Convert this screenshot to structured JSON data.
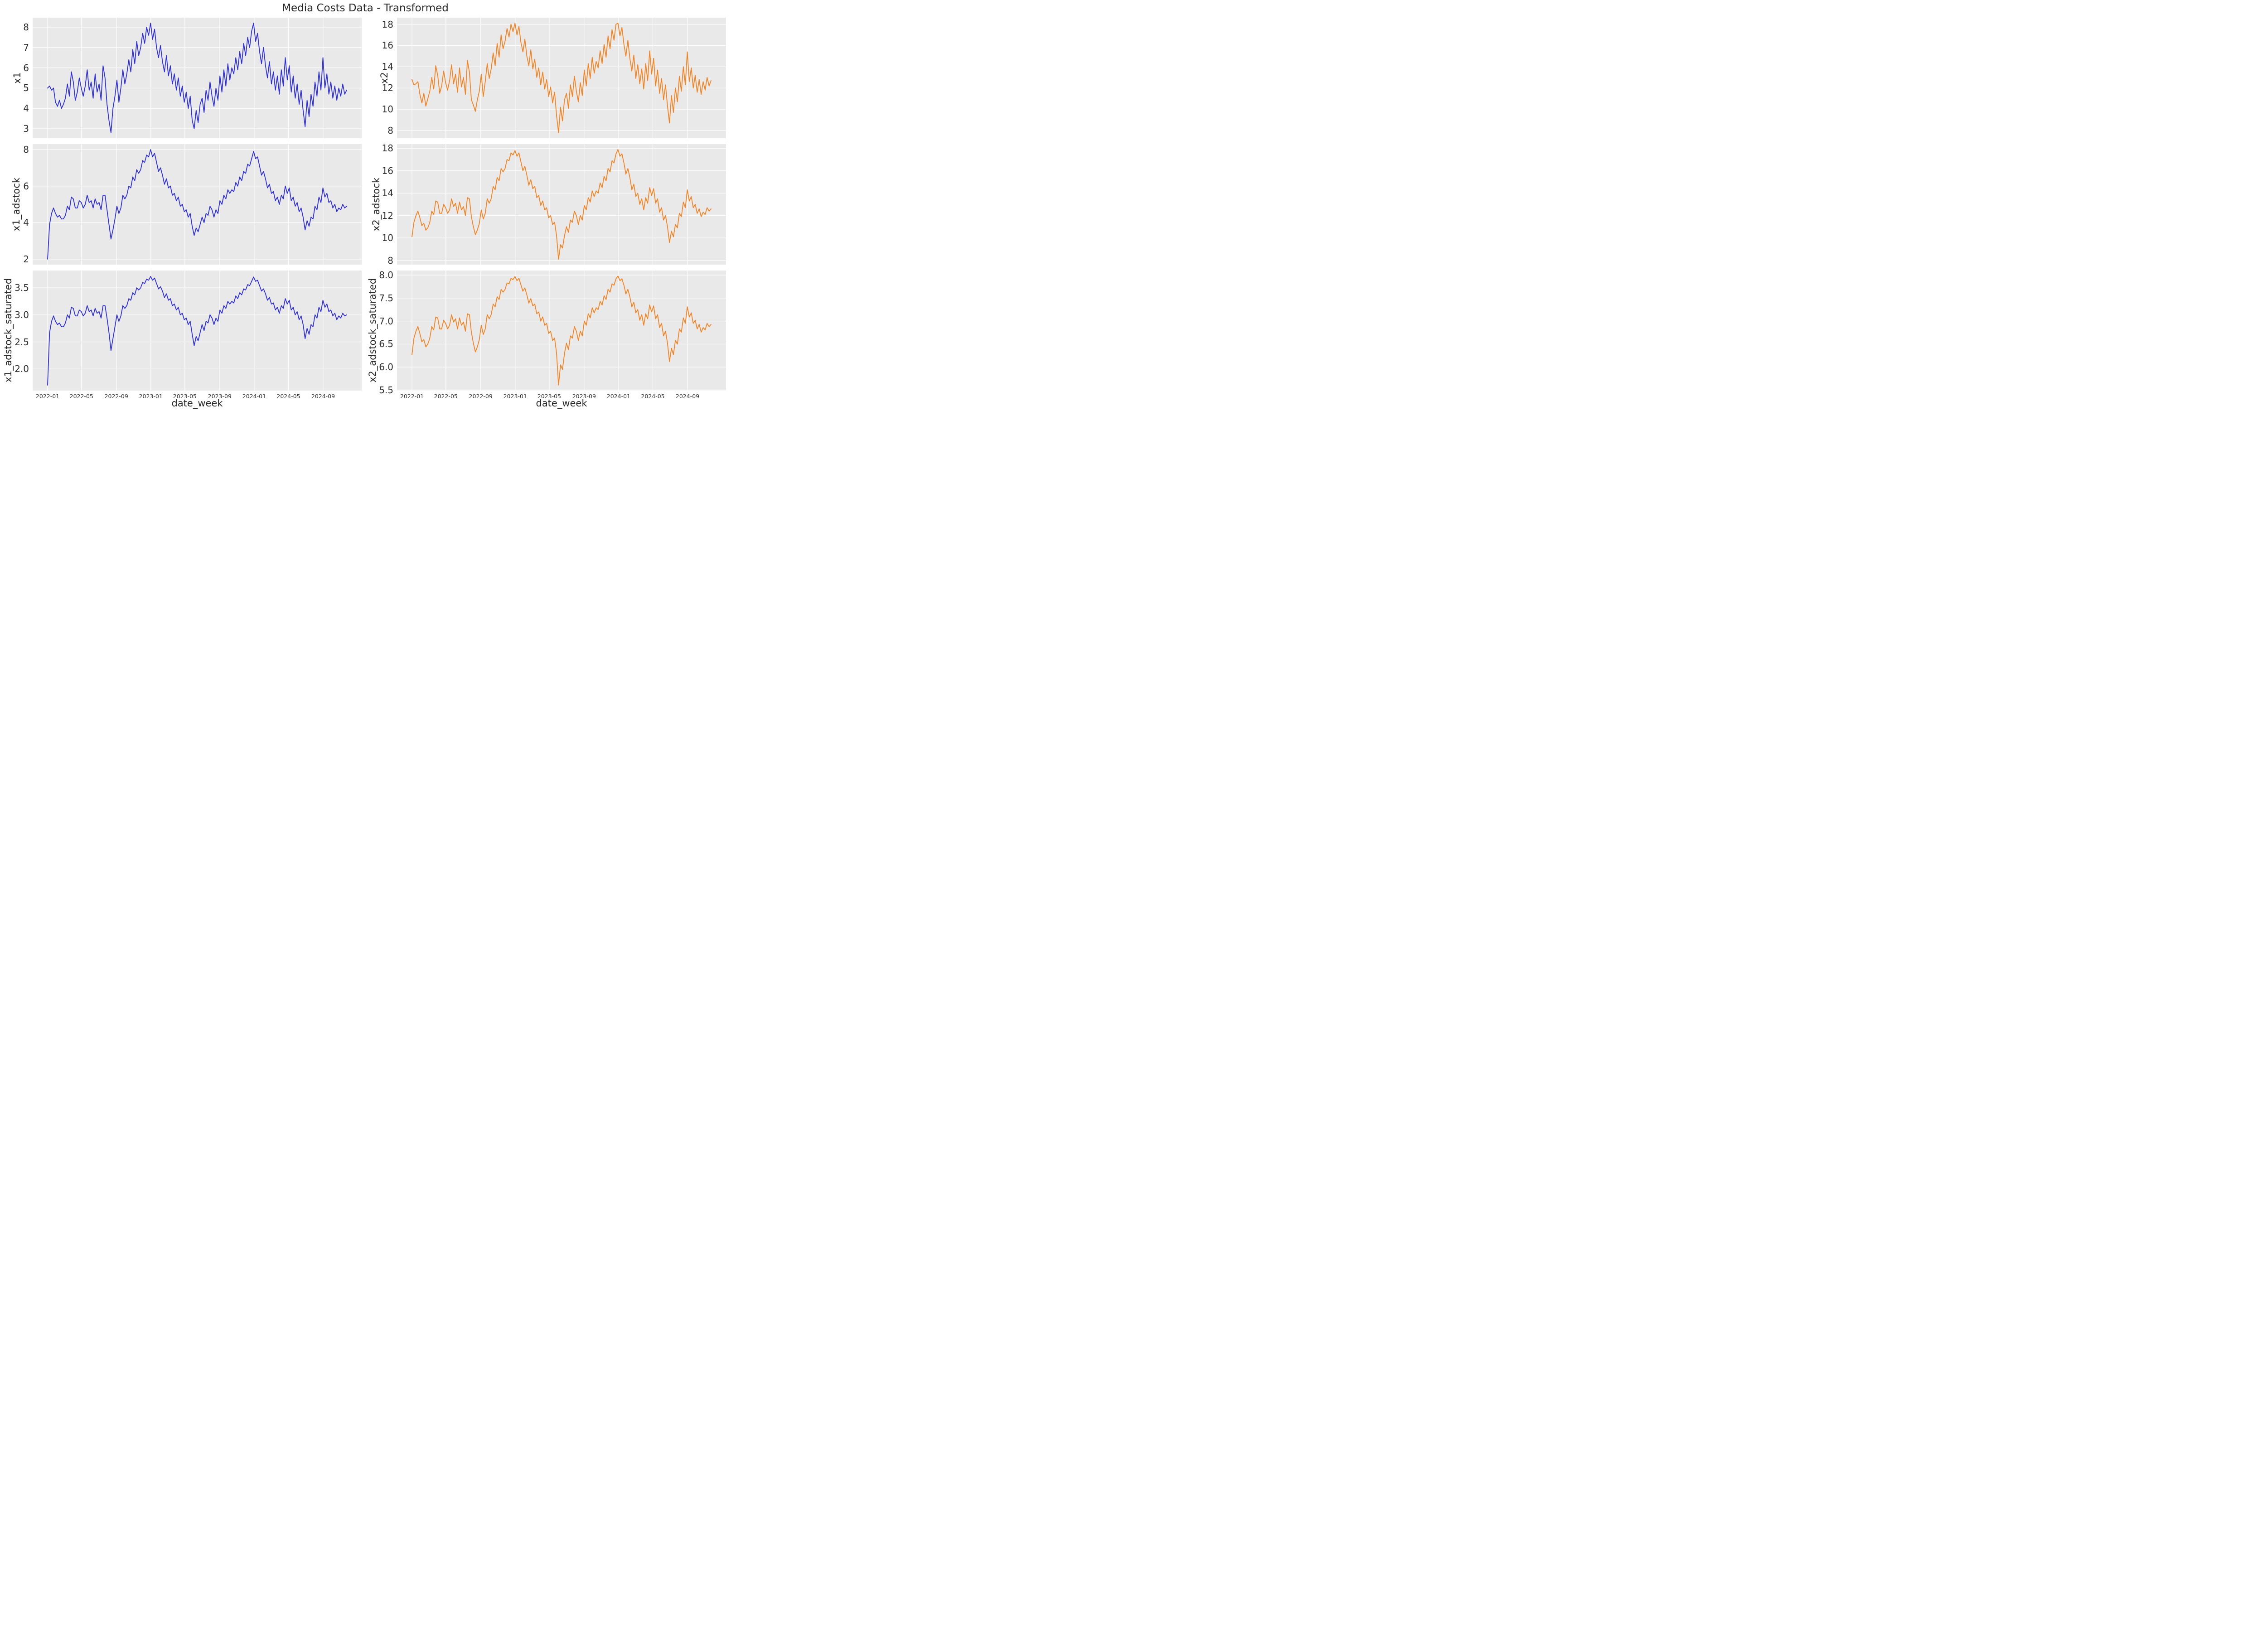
{
  "title": "Media Costs Data - Transformed",
  "colors": {
    "blue_series": "#2d2de1",
    "orange_series": "#f5821f",
    "axes_background": "#e9e9e9",
    "gridline": "#ffffff",
    "figure_background": "#ffffff",
    "text": "#262626",
    "tick_text": "#2e2e2e"
  },
  "chart_data": {
    "type": "line",
    "title": "Media Costs Data - Transformed",
    "xlabel": "date_week",
    "layout": "3 rows x 2 cols; left column blue (x1 family), right column orange (x2 family)",
    "grid": "white gridlines on light gray axes background, both axes, no legend",
    "x_unit": "weekly observations starting 2022-01",
    "n_points": 152,
    "xlim_weeks": [
      -7.55,
      158.55
    ],
    "xticks": {
      "labels": [
        "2022-01",
        "2022-05",
        "2022-09",
        "2023-01",
        "2023-05",
        "2023-09",
        "2024-01",
        "2024-05",
        "2024-09"
      ],
      "week_positions": [
        0,
        17.1,
        34.7,
        52.1,
        69.3,
        86.9,
        104.3,
        121.6,
        139.1
      ]
    },
    "subplots": [
      {
        "ylabel": "x1",
        "series_key": "x1",
        "color_key": "blue_series",
        "ylim": [
          2.53,
          8.47
        ],
        "ytick_values": [
          3,
          4,
          5,
          6,
          7,
          8
        ],
        "ytick_labels": [
          "3",
          "4",
          "5",
          "6",
          "7",
          "8"
        ],
        "show_x_ticks": false
      },
      {
        "ylabel": "x2",
        "series_key": "x2",
        "color_key": "orange_series",
        "ylim": [
          7.28,
          18.62
        ],
        "ytick_values": [
          8,
          10,
          12,
          14,
          16,
          18
        ],
        "ytick_labels": [
          "8",
          "10",
          "12",
          "14",
          "16",
          "18"
        ],
        "show_x_ticks": false
      },
      {
        "ylabel": "x1_adstock",
        "series_key": "x1_adstock",
        "color_key": "blue_series",
        "ylim": [
          1.7,
          8.3
        ],
        "ytick_values": [
          2,
          4,
          6,
          8
        ],
        "ytick_labels": [
          "2",
          "4",
          "6",
          "8"
        ],
        "show_x_ticks": false
      },
      {
        "ylabel": "x2_adstock",
        "series_key": "x2_adstock",
        "color_key": "orange_series",
        "ylim": [
          7.62,
          18.38
        ],
        "ytick_values": [
          8,
          10,
          12,
          14,
          16,
          18
        ],
        "ytick_labels": [
          "8",
          "10",
          "12",
          "14",
          "16",
          "18"
        ],
        "show_x_ticks": false
      },
      {
        "ylabel": "x1_adstock_saturated",
        "series_key": "x1_adstock_saturated",
        "color_key": "blue_series",
        "ylim": [
          1.6,
          3.82
        ],
        "ytick_values": [
          2.0,
          2.5,
          3.0,
          3.5
        ],
        "ytick_labels": [
          "2.0",
          "2.5",
          "3.0",
          "3.5"
        ],
        "show_x_ticks": true
      },
      {
        "ylabel": "x2_adstock_saturated",
        "series_key": "x2_adstock_saturated",
        "color_key": "orange_series",
        "ylim": [
          5.49,
          8.1
        ],
        "ytick_values": [
          5.5,
          6.0,
          6.5,
          7.0,
          7.5,
          8.0
        ],
        "ytick_labels": [
          "5.5",
          "6.0",
          "6.5",
          "7.0",
          "7.5",
          "8.0"
        ],
        "show_x_ticks": true
      }
    ],
    "series": {
      "x1": [
        5.0,
        5.1,
        4.9,
        5.0,
        4.3,
        4.1,
        4.4,
        4.0,
        4.2,
        4.5,
        5.2,
        4.6,
        5.8,
        5.3,
        4.4,
        4.8,
        5.5,
        5.0,
        4.6,
        5.1,
        5.9,
        4.9,
        5.3,
        4.5,
        5.7,
        4.8,
        5.2,
        4.4,
        6.1,
        5.5,
        4.2,
        3.4,
        2.8,
        4.0,
        4.6,
        5.4,
        4.3,
        5.0,
        5.9,
        5.2,
        5.7,
        6.4,
        5.8,
        6.9,
        6.2,
        7.3,
        6.6,
        7.0,
        7.7,
        7.2,
        8.0,
        7.6,
        8.2,
        7.4,
        7.9,
        7.0,
        6.5,
        7.1,
        6.3,
        5.8,
        6.6,
        5.6,
        6.1,
        5.2,
        5.7,
        4.9,
        5.5,
        4.6,
        5.1,
        4.3,
        4.8,
        4.0,
        4.6,
        3.4,
        3.0,
        3.9,
        3.3,
        4.2,
        4.5,
        3.8,
        4.9,
        4.4,
        5.3,
        4.6,
        4.1,
        5.0,
        4.4,
        5.6,
        4.8,
        5.9,
        5.1,
        6.2,
        5.4,
        6.0,
        5.7,
        6.5,
        5.9,
        6.8,
        6.2,
        7.2,
        6.6,
        7.5,
        7.0,
        7.8,
        8.2,
        7.3,
        7.7,
        6.8,
        6.2,
        7.0,
        6.1,
        5.5,
        6.3,
        5.2,
        5.8,
        4.9,
        5.6,
        4.7,
        5.9,
        5.1,
        6.5,
        5.4,
        6.1,
        4.8,
        5.6,
        4.5,
        5.2,
        4.2,
        4.9,
        3.9,
        3.1,
        4.4,
        3.6,
        4.7,
        4.1,
        5.3,
        4.6,
        5.8,
        4.9,
        6.5,
        5.0,
        5.7,
        4.7,
        5.3,
        4.5,
        5.1,
        4.4,
        5.0,
        4.6,
        5.2,
        4.7,
        4.9
      ],
      "x2": [
        12.8,
        12.3,
        12.4,
        12.6,
        11.4,
        10.6,
        11.5,
        10.3,
        11.0,
        11.7,
        13.0,
        11.9,
        14.1,
        13.2,
        11.5,
        12.2,
        13.6,
        12.5,
        11.8,
        12.7,
        14.2,
        12.4,
        13.3,
        11.6,
        13.9,
        12.1,
        13.0,
        11.4,
        14.6,
        13.5,
        10.9,
        10.4,
        9.8,
        10.9,
        11.7,
        13.3,
        11.2,
        12.6,
        14.3,
        12.9,
        13.8,
        15.3,
        14.1,
        16.2,
        14.9,
        17.0,
        15.7,
        16.4,
        17.6,
        16.8,
        18.0,
        17.3,
        18.1,
        17.0,
        17.8,
        16.3,
        15.4,
        16.6,
        15.0,
        14.1,
        15.6,
        13.8,
        14.7,
        13.0,
        13.9,
        12.3,
        13.5,
        11.9,
        12.8,
        11.2,
        12.1,
        10.6,
        11.6,
        9.4,
        7.8,
        10.2,
        8.9,
        10.9,
        11.5,
        10.1,
        12.3,
        11.2,
        13.1,
        11.7,
        10.7,
        12.5,
        11.3,
        13.7,
        12.2,
        14.3,
        12.9,
        14.9,
        13.4,
        14.5,
        13.9,
        15.5,
        14.3,
        16.1,
        14.9,
        16.9,
        15.7,
        17.5,
        16.5,
        18.0,
        18.1,
        16.9,
        17.7,
        16.1,
        15.0,
        16.5,
        14.8,
        13.6,
        15.1,
        12.9,
        14.2,
        12.4,
        13.8,
        11.9,
        14.3,
        12.7,
        15.5,
        13.3,
        14.8,
        12.2,
        13.7,
        11.5,
        12.9,
        10.9,
        12.3,
        10.3,
        8.7,
        11.3,
        9.7,
        12.0,
        10.7,
        13.1,
        11.7,
        14.0,
        12.3,
        15.4,
        12.6,
        13.9,
        12.0,
        13.2,
        11.6,
        12.8,
        11.4,
        12.6,
        11.8,
        13.0,
        12.2,
        12.7
      ],
      "x1_adstock": [
        2.0,
        3.9,
        4.5,
        4.8,
        4.5,
        4.3,
        4.4,
        4.2,
        4.2,
        4.4,
        4.9,
        4.7,
        5.4,
        5.3,
        4.8,
        4.8,
        5.2,
        5.1,
        4.8,
        5.0,
        5.5,
        5.1,
        5.2,
        4.8,
        5.3,
        5.0,
        5.1,
        4.7,
        5.5,
        5.5,
        4.7,
        3.9,
        3.1,
        3.6,
        4.2,
        4.9,
        4.5,
        4.8,
        5.5,
        5.3,
        5.5,
        6.0,
        5.9,
        6.5,
        6.3,
        6.9,
        6.7,
        6.9,
        7.4,
        7.3,
        7.7,
        7.6,
        8.0,
        7.6,
        7.8,
        7.3,
        6.8,
        7.0,
        6.6,
        6.1,
        6.4,
        5.9,
        6.0,
        5.5,
        5.6,
        5.2,
        5.4,
        4.9,
        5.0,
        4.6,
        4.7,
        4.3,
        4.5,
        3.8,
        3.3,
        3.7,
        3.5,
        3.9,
        4.3,
        4.0,
        4.5,
        4.4,
        4.9,
        4.7,
        4.3,
        4.7,
        4.5,
        5.2,
        5.0,
        5.5,
        5.3,
        5.8,
        5.6,
        5.8,
        5.7,
        6.2,
        6.0,
        6.5,
        6.3,
        6.8,
        6.7,
        7.2,
        7.1,
        7.5,
        7.9,
        7.5,
        7.6,
        7.1,
        6.6,
        6.8,
        6.4,
        5.9,
        6.1,
        5.6,
        5.7,
        5.2,
        5.4,
        5.0,
        5.5,
        5.3,
        6.0,
        5.6,
        5.9,
        5.2,
        5.4,
        4.9,
        5.1,
        4.6,
        4.8,
        4.3,
        3.6,
        4.1,
        3.8,
        4.3,
        4.2,
        4.9,
        4.7,
        5.4,
        5.1,
        5.9,
        5.4,
        5.6,
        5.1,
        5.2,
        4.8,
        5.0,
        4.6,
        4.8,
        4.7,
        5.0,
        4.8,
        4.9
      ],
      "x2_adstock": [
        10.1,
        11.4,
        12.0,
        12.4,
        11.8,
        11.1,
        11.3,
        10.7,
        10.9,
        11.4,
        12.4,
        12.1,
        13.3,
        13.2,
        12.2,
        12.2,
        13.0,
        12.7,
        12.2,
        12.5,
        13.5,
        12.8,
        13.1,
        12.2,
        13.2,
        12.5,
        12.8,
        12.0,
        13.6,
        13.5,
        11.9,
        11.0,
        10.3,
        10.7,
        11.3,
        12.5,
        11.7,
        12.2,
        13.5,
        13.1,
        13.5,
        14.6,
        14.3,
        15.4,
        15.1,
        16.2,
        15.9,
        16.2,
        17.0,
        16.9,
        17.6,
        17.4,
        17.8,
        17.3,
        17.6,
        16.8,
        16.0,
        16.4,
        15.6,
        14.7,
        15.2,
        14.4,
        14.6,
        13.6,
        13.8,
        12.9,
        13.3,
        12.5,
        12.7,
        11.8,
        12.0,
        11.2,
        11.4,
        10.2,
        8.1,
        9.4,
        9.1,
        10.2,
        11.0,
        10.5,
        11.6,
        11.4,
        12.4,
        12.0,
        11.2,
        12.0,
        11.6,
        12.9,
        12.5,
        13.6,
        13.2,
        14.2,
        13.7,
        14.2,
        14.0,
        14.9,
        14.5,
        15.5,
        15.1,
        16.2,
        15.9,
        16.9,
        16.7,
        17.5,
        17.9,
        17.3,
        17.5,
        16.7,
        15.7,
        16.2,
        15.4,
        14.3,
        14.8,
        13.7,
        14.0,
        13.0,
        13.5,
        12.5,
        13.6,
        13.1,
        14.5,
        13.8,
        14.4,
        13.1,
        13.5,
        12.3,
        12.7,
        11.6,
        12.0,
        11.0,
        9.6,
        10.6,
        10.1,
        11.2,
        10.9,
        12.2,
        11.9,
        13.2,
        12.7,
        14.3,
        13.3,
        13.7,
        12.7,
        13.0,
        12.2,
        12.6,
        11.9,
        12.3,
        12.1,
        12.7,
        12.4,
        12.6
      ],
      "x1_adstock_saturated": [
        1.7,
        2.67,
        2.88,
        2.98,
        2.88,
        2.82,
        2.85,
        2.78,
        2.78,
        2.85,
        3.0,
        2.94,
        3.14,
        3.12,
        2.98,
        2.98,
        3.09,
        3.06,
        2.98,
        3.03,
        3.17,
        3.06,
        3.09,
        2.98,
        3.12,
        3.03,
        3.06,
        2.94,
        3.17,
        3.17,
        2.94,
        2.67,
        2.34,
        2.56,
        2.78,
        3.0,
        2.88,
        2.98,
        3.17,
        3.12,
        3.17,
        3.3,
        3.27,
        3.41,
        3.37,
        3.5,
        3.46,
        3.5,
        3.6,
        3.58,
        3.66,
        3.64,
        3.71,
        3.64,
        3.68,
        3.58,
        3.48,
        3.52,
        3.44,
        3.32,
        3.39,
        3.27,
        3.3,
        3.17,
        3.2,
        3.09,
        3.14,
        3.0,
        3.03,
        2.91,
        2.94,
        2.82,
        2.88,
        2.64,
        2.43,
        2.6,
        2.52,
        2.67,
        2.82,
        2.71,
        2.88,
        2.85,
        3.0,
        2.94,
        2.82,
        2.94,
        2.88,
        3.09,
        3.03,
        3.17,
        3.12,
        3.25,
        3.2,
        3.25,
        3.22,
        3.35,
        3.3,
        3.41,
        3.37,
        3.48,
        3.46,
        3.56,
        3.54,
        3.62,
        3.7,
        3.62,
        3.64,
        3.54,
        3.44,
        3.48,
        3.39,
        3.27,
        3.32,
        3.2,
        3.22,
        3.09,
        3.14,
        3.03,
        3.17,
        3.12,
        3.3,
        3.2,
        3.27,
        3.09,
        3.14,
        3.0,
        3.06,
        2.91,
        2.98,
        2.82,
        2.56,
        2.75,
        2.64,
        2.82,
        2.78,
        3.0,
        2.94,
        3.14,
        3.06,
        3.27,
        3.14,
        3.2,
        3.06,
        3.09,
        2.98,
        3.03,
        2.91,
        2.98,
        2.94,
        3.03,
        2.98,
        3.0
      ],
      "x2_adstock_saturated": [
        6.27,
        6.63,
        6.78,
        6.88,
        6.73,
        6.55,
        6.6,
        6.44,
        6.5,
        6.63,
        6.88,
        6.81,
        7.09,
        7.07,
        6.83,
        6.83,
        7.02,
        6.95,
        6.83,
        6.91,
        7.14,
        6.98,
        7.05,
        6.83,
        7.07,
        6.91,
        6.98,
        6.78,
        7.16,
        7.14,
        6.76,
        6.52,
        6.33,
        6.44,
        6.6,
        6.91,
        6.71,
        6.83,
        7.14,
        7.05,
        7.14,
        7.37,
        7.31,
        7.53,
        7.47,
        7.69,
        7.63,
        7.69,
        7.83,
        7.81,
        7.93,
        7.9,
        7.97,
        7.88,
        7.93,
        7.79,
        7.65,
        7.72,
        7.57,
        7.39,
        7.49,
        7.33,
        7.37,
        7.16,
        7.2,
        7.0,
        7.09,
        6.91,
        6.95,
        6.73,
        6.78,
        6.58,
        6.63,
        6.3,
        5.61,
        6.05,
        5.95,
        6.3,
        6.52,
        6.38,
        6.68,
        6.63,
        6.88,
        6.78,
        6.58,
        6.78,
        6.68,
        7.0,
        6.91,
        7.16,
        7.07,
        7.29,
        7.18,
        7.29,
        7.25,
        7.43,
        7.35,
        7.55,
        7.47,
        7.69,
        7.63,
        7.81,
        7.78,
        7.92,
        7.98,
        7.88,
        7.92,
        7.78,
        7.59,
        7.69,
        7.53,
        7.31,
        7.41,
        7.18,
        7.25,
        7.02,
        7.14,
        6.91,
        7.16,
        7.05,
        7.35,
        7.2,
        7.33,
        7.05,
        7.14,
        6.86,
        6.95,
        6.68,
        6.78,
        6.52,
        6.12,
        6.41,
        6.27,
        6.58,
        6.5,
        6.83,
        6.76,
        7.07,
        6.95,
        7.31,
        7.09,
        7.18,
        6.95,
        7.02,
        6.83,
        6.93,
        6.76,
        6.86,
        6.81,
        6.95,
        6.88,
        6.93
      ]
    }
  }
}
